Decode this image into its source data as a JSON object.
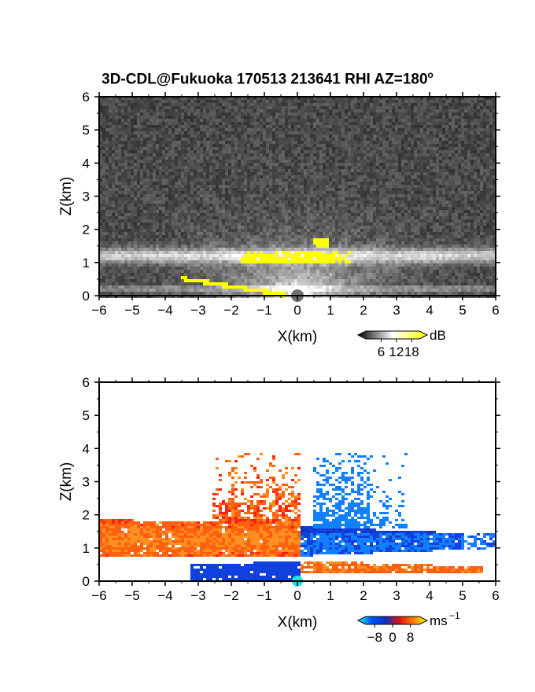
{
  "title": "3D-CDL@Fukuoka 170513 213641 RHI AZ=180",
  "title_superscript": "o",
  "chart_data": [
    {
      "type": "heatmap",
      "variable": "backscatter",
      "xlabel": "X(km)",
      "ylabel": "Z(km)",
      "xlim": [
        -6,
        6
      ],
      "ylim": [
        0,
        6
      ],
      "x_ticks": [
        "−6",
        "−5",
        "−4",
        "−3",
        "−2",
        "−1",
        "0",
        "1",
        "2",
        "3",
        "4",
        "5",
        "6"
      ],
      "y_ticks": [
        "0",
        "1",
        "2",
        "3",
        "4",
        "5",
        "6"
      ],
      "colorbar": {
        "unit": "dB",
        "ticks": [
          "6",
          "12",
          "18"
        ],
        "tick_values": [
          6,
          12,
          18
        ],
        "range": [
          0,
          21
        ],
        "colors": [
          "#000000",
          "#ffffff",
          "#ffff00"
        ]
      }
    },
    {
      "type": "heatmap",
      "variable": "doppler velocity",
      "xlabel": "X(km)",
      "ylabel": "Z(km)",
      "xlim": [
        -6,
        6
      ],
      "ylim": [
        0,
        6
      ],
      "x_ticks": [
        "−6",
        "−5",
        "−4",
        "−3",
        "−2",
        "−1",
        "0",
        "1",
        "2",
        "3",
        "4",
        "5",
        "6"
      ],
      "y_ticks": [
        "0",
        "1",
        "2",
        "3",
        "4",
        "5",
        "6"
      ],
      "colorbar": {
        "unit": "ms",
        "unit_superscript": "−1",
        "ticks": [
          "−8",
          "0",
          "8"
        ],
        "tick_values": [
          -8,
          0,
          8
        ],
        "range": [
          -12,
          12
        ],
        "colors": [
          "#00ffff",
          "#0050ff",
          "#1030c0",
          "#e01010",
          "#ff8000",
          "#ffff00"
        ]
      }
    }
  ]
}
